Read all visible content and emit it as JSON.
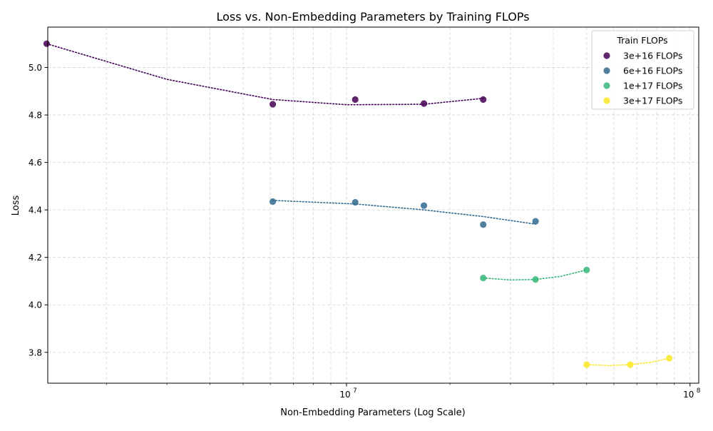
{
  "chart_data": {
    "type": "scatter",
    "title": "Loss vs. Non-Embedding Parameters by Training FLOPs",
    "xlabel": "Non-Embedding Parameters (Log Scale)",
    "ylabel": "Loss",
    "x_scale": "log",
    "xlim": [
      1350000,
      106000000
    ],
    "ylim": [
      3.67,
      5.17
    ],
    "x_ticks": [
      {
        "value": 10000000,
        "base": "10",
        "exp": "7"
      },
      {
        "value": 100000000,
        "base": "10",
        "exp": "8"
      }
    ],
    "y_ticks": [
      3.8,
      4.0,
      4.2,
      4.4,
      4.6,
      4.8,
      5.0
    ],
    "y_tick_labels": [
      "3.8",
      "4.0",
      "4.2",
      "4.4",
      "4.6",
      "4.8",
      "5.0"
    ],
    "grid": true,
    "legend": {
      "title": "Train FLOPs",
      "position": "top-right"
    },
    "series": [
      {
        "name": "3e+16 FLOPs",
        "color": "#440154",
        "x": [
          1340000,
          6100000,
          10600000,
          16800000,
          25000000
        ],
        "y": [
          5.1,
          4.845,
          4.865,
          4.848,
          4.865
        ],
        "fit": [
          [
            1340000,
            5.1
          ],
          [
            3000000,
            4.95
          ],
          [
            6100000,
            4.865
          ],
          [
            10000000,
            4.843
          ],
          [
            16800000,
            4.845
          ],
          [
            25000000,
            4.87
          ]
        ]
      },
      {
        "name": "6e+16 FLOPs",
        "color": "#31688e",
        "x": [
          6100000,
          10600000,
          16800000,
          25000000,
          35500000
        ],
        "y": [
          4.435,
          4.432,
          4.418,
          4.338,
          4.352
        ],
        "fit": [
          [
            6100000,
            4.44
          ],
          [
            10600000,
            4.425
          ],
          [
            16800000,
            4.4
          ],
          [
            25000000,
            4.372
          ],
          [
            35500000,
            4.34
          ]
        ]
      },
      {
        "name": "1e+17 FLOPs",
        "color": "#35b779",
        "x": [
          25000000,
          35500000,
          50000000
        ],
        "y": [
          4.113,
          4.107,
          4.147
        ],
        "fit": [
          [
            25000000,
            4.113
          ],
          [
            30000000,
            4.105
          ],
          [
            35500000,
            4.107
          ],
          [
            42000000,
            4.12
          ],
          [
            50000000,
            4.147
          ]
        ]
      },
      {
        "name": "3e+17 FLOPs",
        "color": "#fde725",
        "x": [
          50000000,
          67000000,
          87000000
        ],
        "y": [
          3.748,
          3.748,
          3.775
        ],
        "fit": [
          [
            50000000,
            3.748
          ],
          [
            58000000,
            3.744
          ],
          [
            67000000,
            3.748
          ],
          [
            77000000,
            3.758
          ],
          [
            87000000,
            3.775
          ]
        ]
      }
    ]
  }
}
